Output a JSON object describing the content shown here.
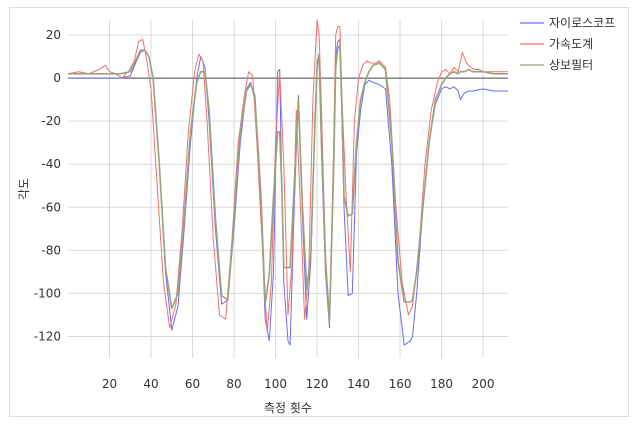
{
  "chart_data": {
    "type": "line",
    "title": "",
    "xlabel": "측정 횟수",
    "ylabel": "각도",
    "xlim": [
      0,
      212
    ],
    "ylim": [
      -130,
      27
    ],
    "xticks": [
      20,
      40,
      60,
      80,
      100,
      120,
      140,
      160,
      180,
      200
    ],
    "yticks": [
      20,
      0,
      -20,
      -40,
      -60,
      -80,
      -100,
      -120
    ],
    "grid": true,
    "legend_position": "top-right",
    "series": [
      {
        "name": "자이로스코프",
        "color": "#6b6bf0",
        "x": [
          0,
          10,
          20,
          25,
          30,
          33,
          35,
          37,
          39,
          41,
          44,
          47,
          50,
          53,
          56,
          59,
          62,
          64,
          66,
          68,
          71,
          74,
          77,
          80,
          83,
          86,
          88,
          90,
          93,
          95,
          97,
          99,
          101,
          102,
          103,
          104,
          106,
          107,
          109,
          111,
          113,
          115,
          117,
          119,
          120,
          121,
          122,
          124,
          126,
          128,
          129,
          130,
          131,
          132,
          133,
          135,
          137,
          139,
          141,
          143,
          145,
          147,
          150,
          153,
          156,
          159,
          162,
          165,
          166,
          168,
          171,
          174,
          177,
          180,
          182,
          184,
          186,
          188,
          189,
          191,
          193,
          195,
          200,
          205,
          212
        ],
        "values": [
          0,
          0,
          0,
          0,
          1,
          8,
          12,
          13,
          10,
          0,
          -40,
          -90,
          -117,
          -106,
          -70,
          -30,
          0,
          10,
          5,
          -20,
          -70,
          -105,
          -103,
          -70,
          -30,
          -5,
          -2,
          -10,
          -60,
          -112,
          -122,
          -90,
          3,
          4,
          -50,
          -95,
          -122,
          -124,
          -60,
          -8,
          -65,
          -112,
          -85,
          -20,
          8,
          10,
          -30,
          -90,
          -116,
          -40,
          10,
          17,
          18,
          -20,
          -60,
          -101,
          -100,
          -35,
          -15,
          -3,
          -1,
          -2,
          -3,
          -5,
          -40,
          -100,
          -124,
          -122,
          -120,
          -100,
          -60,
          -30,
          -12,
          -5,
          -4,
          -5,
          -4,
          -6,
          -10,
          -7,
          -6,
          -6,
          -5,
          -6,
          -6
        ]
      },
      {
        "name": "가속도계",
        "color": "#f07070",
        "x": [
          0,
          5,
          10,
          15,
          18,
          20,
          23,
          26,
          29,
          32,
          34,
          36,
          38,
          40,
          43,
          46,
          49,
          52,
          55,
          58,
          61,
          63,
          65,
          67,
          70,
          73,
          76,
          79,
          82,
          85,
          87,
          89,
          91,
          94,
          96,
          98,
          100,
          102,
          104,
          106,
          108,
          110,
          112,
          114,
          116,
          118,
          120,
          121,
          122,
          124,
          126,
          128,
          129,
          130,
          131,
          132,
          134,
          136,
          138,
          140,
          142,
          144,
          146,
          148,
          150,
          153,
          155,
          158,
          161,
          164,
          166,
          169,
          172,
          175,
          178,
          180,
          182,
          184,
          186,
          188,
          190,
          192,
          194,
          196,
          198,
          200,
          205,
          212
        ],
        "values": [
          2,
          3,
          2,
          4,
          6,
          3,
          2,
          0,
          3,
          8,
          17,
          18,
          8,
          -5,
          -50,
          -95,
          -116,
          -105,
          -70,
          -25,
          3,
          11,
          8,
          -20,
          -75,
          -110,
          -112,
          -75,
          -30,
          -8,
          3,
          1,
          -30,
          -85,
          -118,
          -95,
          -30,
          3,
          -40,
          -110,
          -85,
          -15,
          -60,
          -112,
          -90,
          -10,
          27,
          20,
          -10,
          -80,
          -114,
          -30,
          20,
          24,
          24,
          -10,
          -55,
          -90,
          -20,
          0,
          6,
          8,
          7,
          7,
          8,
          5,
          -10,
          -60,
          -95,
          -110,
          -106,
          -80,
          -40,
          -15,
          -2,
          3,
          4,
          2,
          5,
          3,
          12,
          7,
          5,
          4,
          4,
          3,
          3,
          3
        ]
      },
      {
        "name": "상보필터",
        "color": "#9aa27a",
        "x": [
          0,
          10,
          20,
          25,
          30,
          33,
          35,
          37,
          39,
          41,
          44,
          47,
          50,
          53,
          56,
          59,
          62,
          64,
          66,
          68,
          71,
          74,
          77,
          80,
          83,
          86,
          88,
          90,
          93,
          95,
          97,
          99,
          101,
          102,
          103,
          104,
          106,
          107,
          109,
          111,
          113,
          115,
          117,
          119,
          120,
          121,
          122,
          124,
          126,
          128,
          129,
          130,
          131,
          132,
          133,
          135,
          137,
          139,
          141,
          143,
          145,
          147,
          150,
          153,
          156,
          159,
          162,
          165,
          166,
          168,
          171,
          174,
          177,
          180,
          182,
          184,
          186,
          188,
          189,
          191,
          193,
          195,
          200,
          205,
          212
        ],
        "values": [
          2,
          2,
          2,
          2,
          3,
          9,
          13,
          13,
          10,
          0,
          -40,
          -88,
          -107,
          -100,
          -65,
          -25,
          -2,
          3,
          3,
          -15,
          -65,
          -101,
          -103,
          -65,
          -25,
          -6,
          -3,
          -8,
          -55,
          -105,
          -91,
          -55,
          -25,
          -25,
          -50,
          -88,
          -88,
          -88,
          -50,
          -10,
          -60,
          -98,
          -82,
          -20,
          5,
          11,
          -25,
          -85,
          -112,
          -42,
          5,
          14,
          15,
          -15,
          -55,
          -64,
          -63,
          -30,
          -10,
          -2,
          3,
          6,
          7,
          4,
          -30,
          -85,
          -104,
          -104,
          -103,
          -90,
          -60,
          -30,
          -10,
          -3,
          0,
          2,
          3,
          2,
          3,
          3,
          4,
          3,
          3,
          2,
          2
        ]
      }
    ]
  }
}
